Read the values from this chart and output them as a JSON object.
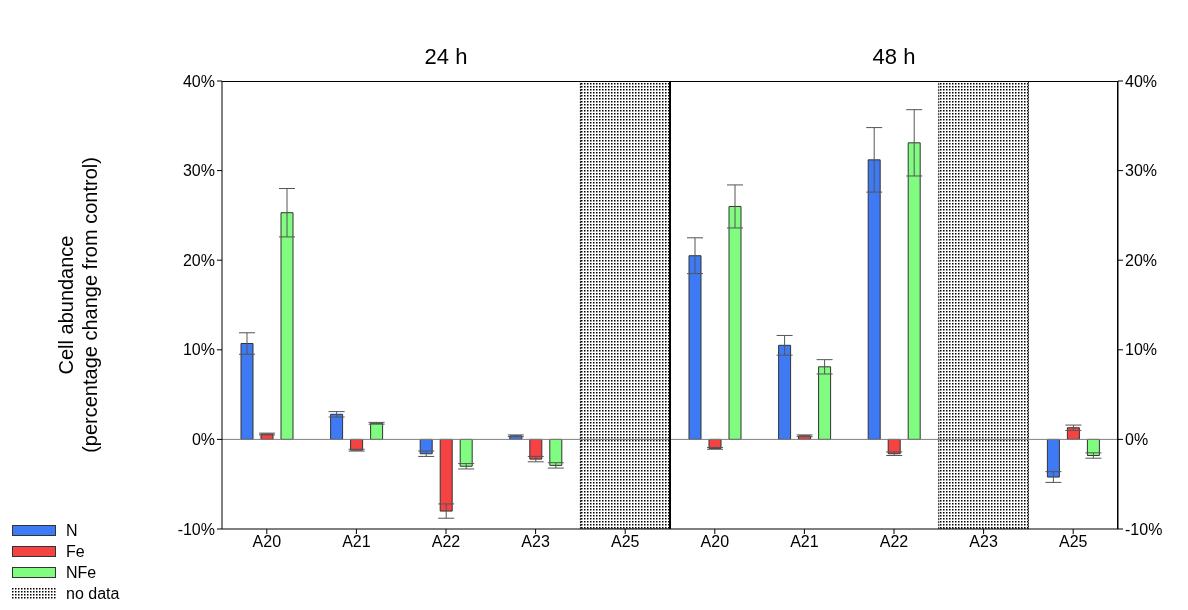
{
  "chart_data": [
    {
      "type": "bar",
      "title": "24 h",
      "ylabel": "Cell abundance\n(percentage change from control)",
      "categories": [
        "A20",
        "A21",
        "A22",
        "A23",
        "A25"
      ],
      "ylim": [
        -10,
        40
      ],
      "yticks": [
        {
          "value": -10,
          "label": "-10%"
        },
        {
          "value": 0,
          "label": "0%"
        },
        {
          "value": 10,
          "label": "10%"
        },
        {
          "value": 20,
          "label": "20%"
        },
        {
          "value": 30,
          "label": "30%"
        },
        {
          "value": 40,
          "label": "40%"
        }
      ],
      "legend": "bottom left",
      "series": [
        {
          "name": "N",
          "color": "#3f7af5",
          "values": [
            10.7,
            2.8,
            -1.6,
            0.4,
            null
          ],
          "errors": [
            1.2,
            0.3,
            0.3,
            0.1,
            null
          ]
        },
        {
          "name": "Fe",
          "color": "#f54242",
          "values": [
            0.6,
            -1.2,
            -8.0,
            -2.2,
            null
          ],
          "errors": [
            0.1,
            0.1,
            0.8,
            0.3,
            null
          ]
        },
        {
          "name": "NFe",
          "color": "#80fc80",
          "values": [
            25.3,
            1.8,
            -3.0,
            -2.9,
            null
          ],
          "errors": [
            2.7,
            0.1,
            0.3,
            0.3,
            null
          ]
        }
      ],
      "bands": [
        {
          "axis": "x",
          "from": "A25",
          "to": "A25",
          "label": "no data"
        }
      ],
      "ref_lines": [
        {
          "axis": "y",
          "value": 0,
          "color": "#808080"
        }
      ]
    },
    {
      "type": "bar",
      "title": "48 h",
      "categories": [
        "A20",
        "A21",
        "A22",
        "A23",
        "A25"
      ],
      "ylim": [
        -10,
        40
      ],
      "yticks": [
        {
          "value": -10,
          "label": "-10%"
        },
        {
          "value": 0,
          "label": "0%"
        },
        {
          "value": 10,
          "label": "10%"
        },
        {
          "value": 20,
          "label": "20%"
        },
        {
          "value": 30,
          "label": "30%"
        },
        {
          "value": 40,
          "label": "40%"
        }
      ],
      "series": [
        {
          "color": "#3f7af5",
          "values": [
            20.5,
            10.5,
            31.2,
            null,
            -4.2
          ],
          "errors": [
            2.0,
            1.1,
            3.6,
            null,
            0.6
          ]
        },
        {
          "color": "#f54242",
          "values": [
            -1.0,
            0.4,
            -1.6,
            null,
            1.3
          ],
          "errors": [
            0.1,
            0.1,
            0.2,
            null,
            0.3
          ]
        },
        {
          "color": "#80fc80",
          "values": [
            26.0,
            8.1,
            33.1,
            null,
            -1.8
          ],
          "errors": [
            2.4,
            0.8,
            3.7,
            null,
            0.3
          ]
        }
      ],
      "bands": [
        {
          "axis": "x",
          "from": "A23",
          "to": "A23"
        }
      ],
      "ref_lines": [
        {
          "axis": "y",
          "value": 0,
          "color": "#808080"
        }
      ]
    }
  ]
}
